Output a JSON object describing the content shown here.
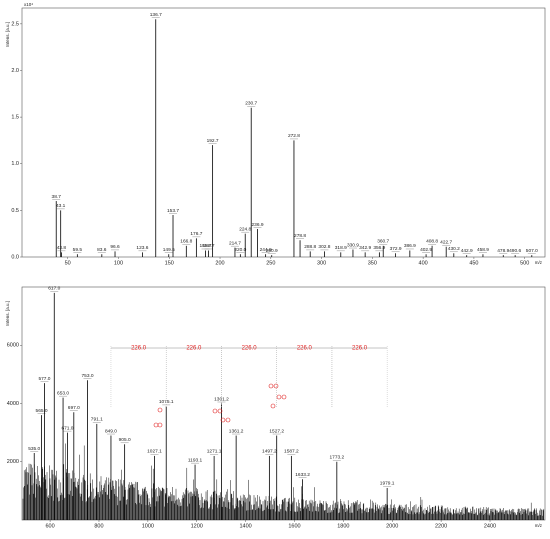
{
  "chart_data": [
    {
      "type": "stick",
      "y_label": "Intens. [a.u.]",
      "y_scale_label": "x10⁴",
      "x_label": "m/z",
      "xlim": [
        5,
        520
      ],
      "xticks": [
        50,
        100,
        150,
        200,
        250,
        300,
        350,
        400,
        450,
        500
      ],
      "ylim": [
        0,
        2.67
      ],
      "yticks": [
        {
          "value": 0,
          "label": "0.0"
        },
        0.5,
        {
          "value": 1,
          "label": "1.0"
        },
        1.5,
        {
          "value": 2,
          "label": "2.0"
        },
        2.5
      ],
      "color": "#000000",
      "x": [
        38.7,
        43.1,
        43.8,
        59.5,
        83.6,
        96.6,
        123.6,
        136.7,
        149.5,
        153.7,
        166.8,
        176.7,
        185.7,
        188.7,
        192.7,
        214.7,
        220.0,
        224.8,
        230.7,
        236.9,
        244.9,
        250.9,
        272.8,
        278.8,
        288.8,
        302.8,
        318.9,
        330.9,
        342.9,
        356.9,
        360.7,
        372.9,
        386.9,
        402.9,
        408.8,
        422.7,
        430.2,
        442.9,
        458.9,
        478.9,
        490.6,
        507.0
      ],
      "x_labels": [
        "38.7",
        "43.1",
        "43.8",
        "59.5",
        "83.6",
        "96.6",
        "123.6",
        "136.7",
        "149.5",
        "153.7",
        "166.8",
        "176.7",
        "185.7",
        "188.7",
        "192.7",
        "214.7",
        "220.0",
        "224.8",
        "230.7",
        "236.9",
        "244.9",
        "250.9",
        "272.8",
        "278.8",
        "288.8",
        "302.8",
        "318.9",
        "330.9",
        "342.9",
        "356.9",
        "360.7",
        "372.9",
        "386.9",
        "402.9",
        "408.8",
        "422.7",
        "430.2",
        "442.9",
        "458.9",
        "478.9",
        "490.6",
        "507.0"
      ],
      "values": [
        0.6,
        0.5,
        0.05,
        0.03,
        0.03,
        0.06,
        0.05,
        2.55,
        0.03,
        0.45,
        0.12,
        0.2,
        0.07,
        0.07,
        1.2,
        0.1,
        0.03,
        0.25,
        1.6,
        0.3,
        0.03,
        0.02,
        1.25,
        0.18,
        0.06,
        0.06,
        0.05,
        0.08,
        0.05,
        0.05,
        0.12,
        0.04,
        0.07,
        0.03,
        0.12,
        0.11,
        0.04,
        0.02,
        0.03,
        0.02,
        0.02,
        0.02
      ]
    },
    {
      "type": "stick",
      "y_label": "Intens. [a.u.]",
      "x_label": "m/z",
      "xlim": [
        485,
        2625
      ],
      "xticks": [
        600,
        800,
        1000,
        1200,
        1400,
        1600,
        1800,
        2000,
        2200,
        2400
      ],
      "ylim": [
        0,
        8000
      ],
      "yticks": [
        2000,
        4000,
        6000
      ],
      "color": "#000000",
      "x": [
        535.0,
        565.0,
        577.0,
        617.0,
        653.0,
        671.0,
        697.0,
        753.0,
        791.1,
        849.0,
        905.0,
        1027.1,
        1075.1,
        1193.1,
        1271.1,
        1301.2,
        1361.2,
        1497.2,
        1527.2,
        1587.2,
        1633.2,
        1773.2,
        1979.1
      ],
      "x_labels": [
        "535.0",
        "565.0",
        "577.0",
        "617.0",
        "653.0",
        "671.0",
        "697.0",
        "753.0",
        "791.1",
        "849.0",
        "905.0",
        "1027.1",
        "1075.1",
        "1193.1",
        "1271.1",
        "1301.2",
        "1361.2",
        "1497.2",
        "1527.2",
        "1587.2",
        "1633.2",
        "1773.2",
        "1979.1"
      ],
      "values": [
        2300,
        3600,
        4700,
        7800,
        4200,
        3000,
        3700,
        4800,
        3300,
        2900,
        2600,
        2200,
        3900,
        1900,
        2200,
        4000,
        2900,
        2200,
        2900,
        2200,
        1400,
        2000,
        1100
      ],
      "annotations": [
        {
          "text": "226.0",
          "x1": 849.0,
          "x2": 1075.1,
          "color": "#e02020"
        },
        {
          "text": "226.0",
          "x1": 1075.1,
          "x2": 1301.2,
          "color": "#e02020"
        },
        {
          "text": "226.0",
          "x1": 1301.2,
          "x2": 1527.2,
          "color": "#e02020"
        },
        {
          "text": "226.0",
          "x1": 1527.2,
          "x2": 1753.2,
          "color": "#e02020"
        },
        {
          "text": "226.0",
          "x1": 1753.2,
          "x2": 1979.1,
          "color": "#e02020"
        }
      ]
    }
  ]
}
